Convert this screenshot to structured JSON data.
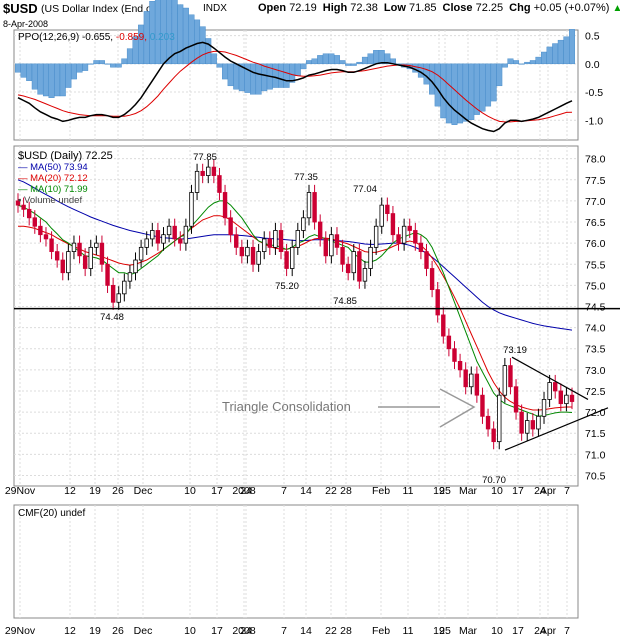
{
  "header": {
    "symbol": "$USD",
    "description": "(US Dollar Index (End of Day))",
    "exchange": "INDX",
    "date": "8-Apr-2008",
    "open_label": "Open",
    "open": "72.19",
    "high_label": "High",
    "high": "72.38",
    "low_label": "Low",
    "low": "71.85",
    "close_label": "Close",
    "close": "72.25",
    "chg_label": "Chg",
    "chg": "+0.05 (+0.07%)",
    "chg_arrow": "▲"
  },
  "ppo_panel": {
    "label": "PPO(12,26,9)",
    "ppo_value": "-0.655,",
    "signal_value": "-0.859,",
    "hist_value": "0.203",
    "ticks": [
      "0.5",
      "0.0",
      "-0.5",
      "-1.0"
    ]
  },
  "price_panel": {
    "title": "$USD (Daily) 72.25",
    "legend": [
      {
        "label": "MA(50) 73.94",
        "color": "#0000aa"
      },
      {
        "label": "MA(20) 72.12",
        "color": "#dd0000"
      },
      {
        "label": "MA(10) 71.99",
        "color": "#008800"
      },
      {
        "label": "Volume undef",
        "color": "#444444"
      }
    ],
    "annotation": "Triangle Consolidation",
    "price_labels": [
      "77.85",
      "77.35",
      "77.04",
      "75.20",
      "74.85",
      "74.48",
      "73.19",
      "70.70"
    ]
  },
  "cmf_panel": {
    "label": "CMF(20) undef"
  },
  "x_axis": {
    "labels": [
      "29Nov",
      "12",
      "19",
      "26",
      "Dec",
      "10",
      "17",
      "24",
      "2008",
      "7",
      "14",
      "22",
      "28",
      "Feb",
      "11",
      "19",
      "25",
      "Mar",
      "10",
      "17",
      "24",
      "Apr",
      "7"
    ]
  },
  "chart_data": {
    "type": "candlestick",
    "y_ticks": [
      78.0,
      77.5,
      77.0,
      76.5,
      76.0,
      75.5,
      75.0,
      74.5,
      74.0,
      73.5,
      73.0,
      72.5,
      72.0,
      71.5,
      71.0,
      70.5
    ],
    "ylim": [
      70.25,
      78.3
    ],
    "support_line": 74.45,
    "closes": [
      76.9,
      76.8,
      76.6,
      76.4,
      76.2,
      76.1,
      75.8,
      75.6,
      75.3,
      75.8,
      76.0,
      75.7,
      75.4,
      75.9,
      76.0,
      75.5,
      75.0,
      74.6,
      74.8,
      75.1,
      75.3,
      75.6,
      75.9,
      76.1,
      76.3,
      76.0,
      76.2,
      76.4,
      76.1,
      76.0,
      76.4,
      77.2,
      77.7,
      77.6,
      77.8,
      77.6,
      77.2,
      76.6,
      76.2,
      75.9,
      75.7,
      75.9,
      75.5,
      75.8,
      76.1,
      75.9,
      76.3,
      75.8,
      75.4,
      75.9,
      76.3,
      76.6,
      77.2,
      76.5,
      76.1,
      75.7,
      76.2,
      75.9,
      75.5,
      75.3,
      75.8,
      75.1,
      75.4,
      75.9,
      76.4,
      76.9,
      76.7,
      76.2,
      76.0,
      76.4,
      76.3,
      76.0,
      75.8,
      75.4,
      74.9,
      74.3,
      73.8,
      73.5,
      73.2,
      73.0,
      72.6,
      72.9,
      72.4,
      71.9,
      71.6,
      71.3,
      72.4,
      73.1,
      72.6,
      72.0,
      71.5,
      71.8,
      71.6,
      71.9,
      72.3,
      72.7,
      72.5,
      72.2,
      72.4,
      72.25
    ],
    "ma10": [
      76.9,
      76.85,
      76.78,
      76.7,
      76.6,
      76.5,
      76.35,
      76.22,
      76.08,
      76.0,
      75.9,
      75.8,
      75.7,
      75.68,
      75.65,
      75.6,
      75.5,
      75.4,
      75.3,
      75.3,
      75.25,
      75.3,
      75.4,
      75.5,
      75.6,
      75.7,
      75.85,
      75.95,
      76.05,
      76.15,
      76.2,
      76.4,
      76.55,
      76.7,
      76.85,
      76.95,
      77.0,
      77.0,
      76.9,
      76.75,
      76.6,
      76.4,
      76.2,
      76.05,
      76.0,
      75.95,
      75.95,
      75.9,
      75.85,
      75.9,
      76.0,
      76.05,
      76.15,
      76.2,
      76.15,
      76.1,
      76.05,
      76.0,
      75.95,
      75.9,
      75.75,
      75.65,
      75.55,
      75.55,
      75.6,
      75.7,
      75.85,
      76.0,
      76.1,
      76.15,
      76.2,
      76.25,
      76.2,
      76.1,
      75.9,
      75.6,
      75.3,
      74.95,
      74.6,
      74.25,
      73.9,
      73.55,
      73.2,
      72.95,
      72.7,
      72.45,
      72.3,
      72.2,
      72.15,
      72.1,
      72.05,
      72.0,
      71.95,
      71.9,
      71.92,
      71.95,
      71.98,
      72.0,
      72.0,
      71.99
    ],
    "ma20": [
      76.4,
      76.4,
      76.38,
      76.35,
      76.3,
      76.25,
      76.2,
      76.12,
      76.05,
      75.98,
      75.92,
      75.86,
      75.8,
      75.76,
      75.72,
      75.68,
      75.63,
      75.58,
      75.53,
      75.5,
      75.48,
      75.5,
      75.55,
      75.6,
      75.68,
      75.76,
      75.85,
      75.95,
      76.05,
      76.15,
      76.25,
      76.35,
      76.45,
      76.55,
      76.6,
      76.65,
      76.65,
      76.62,
      76.55,
      76.45,
      76.35,
      76.25,
      76.15,
      76.05,
      75.98,
      75.92,
      75.88,
      75.86,
      75.86,
      75.88,
      75.92,
      75.98,
      76.05,
      76.1,
      76.12,
      76.12,
      76.1,
      76.06,
      76.02,
      75.98,
      75.92,
      75.86,
      75.8,
      75.78,
      75.78,
      75.82,
      75.86,
      75.92,
      75.98,
      76.02,
      76.05,
      76.02,
      75.95,
      75.82,
      75.65,
      75.45,
      75.22,
      74.98,
      74.72,
      74.45,
      74.15,
      73.85,
      73.55,
      73.25,
      72.95,
      72.7,
      72.5,
      72.35,
      72.25,
      72.18,
      72.12,
      72.08,
      72.05,
      72.05,
      72.06,
      72.08,
      72.1,
      72.11,
      72.12,
      72.12
    ],
    "ma50": [
      77.5,
      77.45,
      77.38,
      77.3,
      77.22,
      77.15,
      77.08,
      77.0,
      76.93,
      76.86,
      76.8,
      76.74,
      76.68,
      76.62,
      76.57,
      76.52,
      76.47,
      76.42,
      76.38,
      76.34,
      76.3,
      76.27,
      76.24,
      76.21,
      76.18,
      76.15,
      76.13,
      76.12,
      76.11,
      76.1,
      76.1,
      76.12,
      76.14,
      76.16,
      76.18,
      76.2,
      76.2,
      76.2,
      76.2,
      76.19,
      76.18,
      76.17,
      76.15,
      76.14,
      76.12,
      76.11,
      76.1,
      76.09,
      76.08,
      76.07,
      76.06,
      76.06,
      76.07,
      76.08,
      76.08,
      76.08,
      76.07,
      76.06,
      76.05,
      76.04,
      76.02,
      76.0,
      75.98,
      75.97,
      75.97,
      75.98,
      75.99,
      76.0,
      76.0,
      75.98,
      75.95,
      75.9,
      75.84,
      75.76,
      75.67,
      75.56,
      75.44,
      75.32,
      75.2,
      75.08,
      74.96,
      74.84,
      74.72,
      74.6,
      74.5,
      74.42,
      74.35,
      74.3,
      74.26,
      74.22,
      74.18,
      74.14,
      74.1,
      74.07,
      74.04,
      74.02,
      74.0,
      73.98,
      73.96,
      73.94
    ],
    "ppo": [
      -0.6,
      -0.65,
      -0.7,
      -0.78,
      -0.85,
      -0.9,
      -0.95,
      -0.98,
      -1.02,
      -1.0,
      -0.97,
      -0.95,
      -0.95,
      -0.92,
      -0.9,
      -0.9,
      -0.92,
      -0.95,
      -0.95,
      -0.9,
      -0.82,
      -0.72,
      -0.6,
      -0.45,
      -0.3,
      -0.15,
      0.0,
      0.1,
      0.18,
      0.22,
      0.28,
      0.32,
      0.36,
      0.38,
      0.35,
      0.28,
      0.2,
      0.12,
      0.05,
      0.0,
      -0.05,
      -0.1,
      -0.15,
      -0.18,
      -0.2,
      -0.22,
      -0.24,
      -0.27,
      -0.3,
      -0.3,
      -0.28,
      -0.25,
      -0.2,
      -0.18,
      -0.15,
      -0.12,
      -0.1,
      -0.1,
      -0.12,
      -0.15,
      -0.15,
      -0.12,
      -0.08,
      -0.04,
      0.0,
      0.02,
      0.02,
      0.0,
      -0.02,
      -0.04,
      -0.06,
      -0.1,
      -0.15,
      -0.22,
      -0.32,
      -0.45,
      -0.6,
      -0.72,
      -0.82,
      -0.9,
      -0.98,
      -1.05,
      -1.1,
      -1.15,
      -1.18,
      -1.2,
      -1.15,
      -1.05,
      -1.0,
      -1.0,
      -1.02,
      -1.0,
      -0.98,
      -0.95,
      -0.9,
      -0.85,
      -0.8,
      -0.75,
      -0.7,
      -0.655
    ],
    "ppo_signal": [
      -0.55,
      -0.57,
      -0.6,
      -0.63,
      -0.67,
      -0.71,
      -0.75,
      -0.79,
      -0.83,
      -0.86,
      -0.88,
      -0.9,
      -0.91,
      -0.92,
      -0.92,
      -0.92,
      -0.92,
      -0.93,
      -0.93,
      -0.93,
      -0.91,
      -0.88,
      -0.83,
      -0.76,
      -0.67,
      -0.57,
      -0.45,
      -0.34,
      -0.23,
      -0.13,
      -0.05,
      0.03,
      0.1,
      0.16,
      0.2,
      0.22,
      0.22,
      0.21,
      0.18,
      0.15,
      0.11,
      0.07,
      0.03,
      0.0,
      -0.04,
      -0.07,
      -0.1,
      -0.13,
      -0.16,
      -0.19,
      -0.21,
      -0.22,
      -0.22,
      -0.21,
      -0.2,
      -0.18,
      -0.16,
      -0.15,
      -0.14,
      -0.14,
      -0.14,
      -0.13,
      -0.12,
      -0.1,
      -0.08,
      -0.06,
      -0.04,
      -0.03,
      -0.02,
      -0.02,
      -0.03,
      -0.05,
      -0.07,
      -0.1,
      -0.14,
      -0.2,
      -0.28,
      -0.37,
      -0.46,
      -0.55,
      -0.64,
      -0.72,
      -0.8,
      -0.87,
      -0.93,
      -0.98,
      -1.02,
      -1.03,
      -1.03,
      -1.02,
      -1.02,
      -1.01,
      -1.0,
      -0.99,
      -0.97,
      -0.95,
      -0.92,
      -0.89,
      -0.86,
      -0.859
    ],
    "ppo_ylim": [
      -1.35,
      0.6
    ]
  }
}
